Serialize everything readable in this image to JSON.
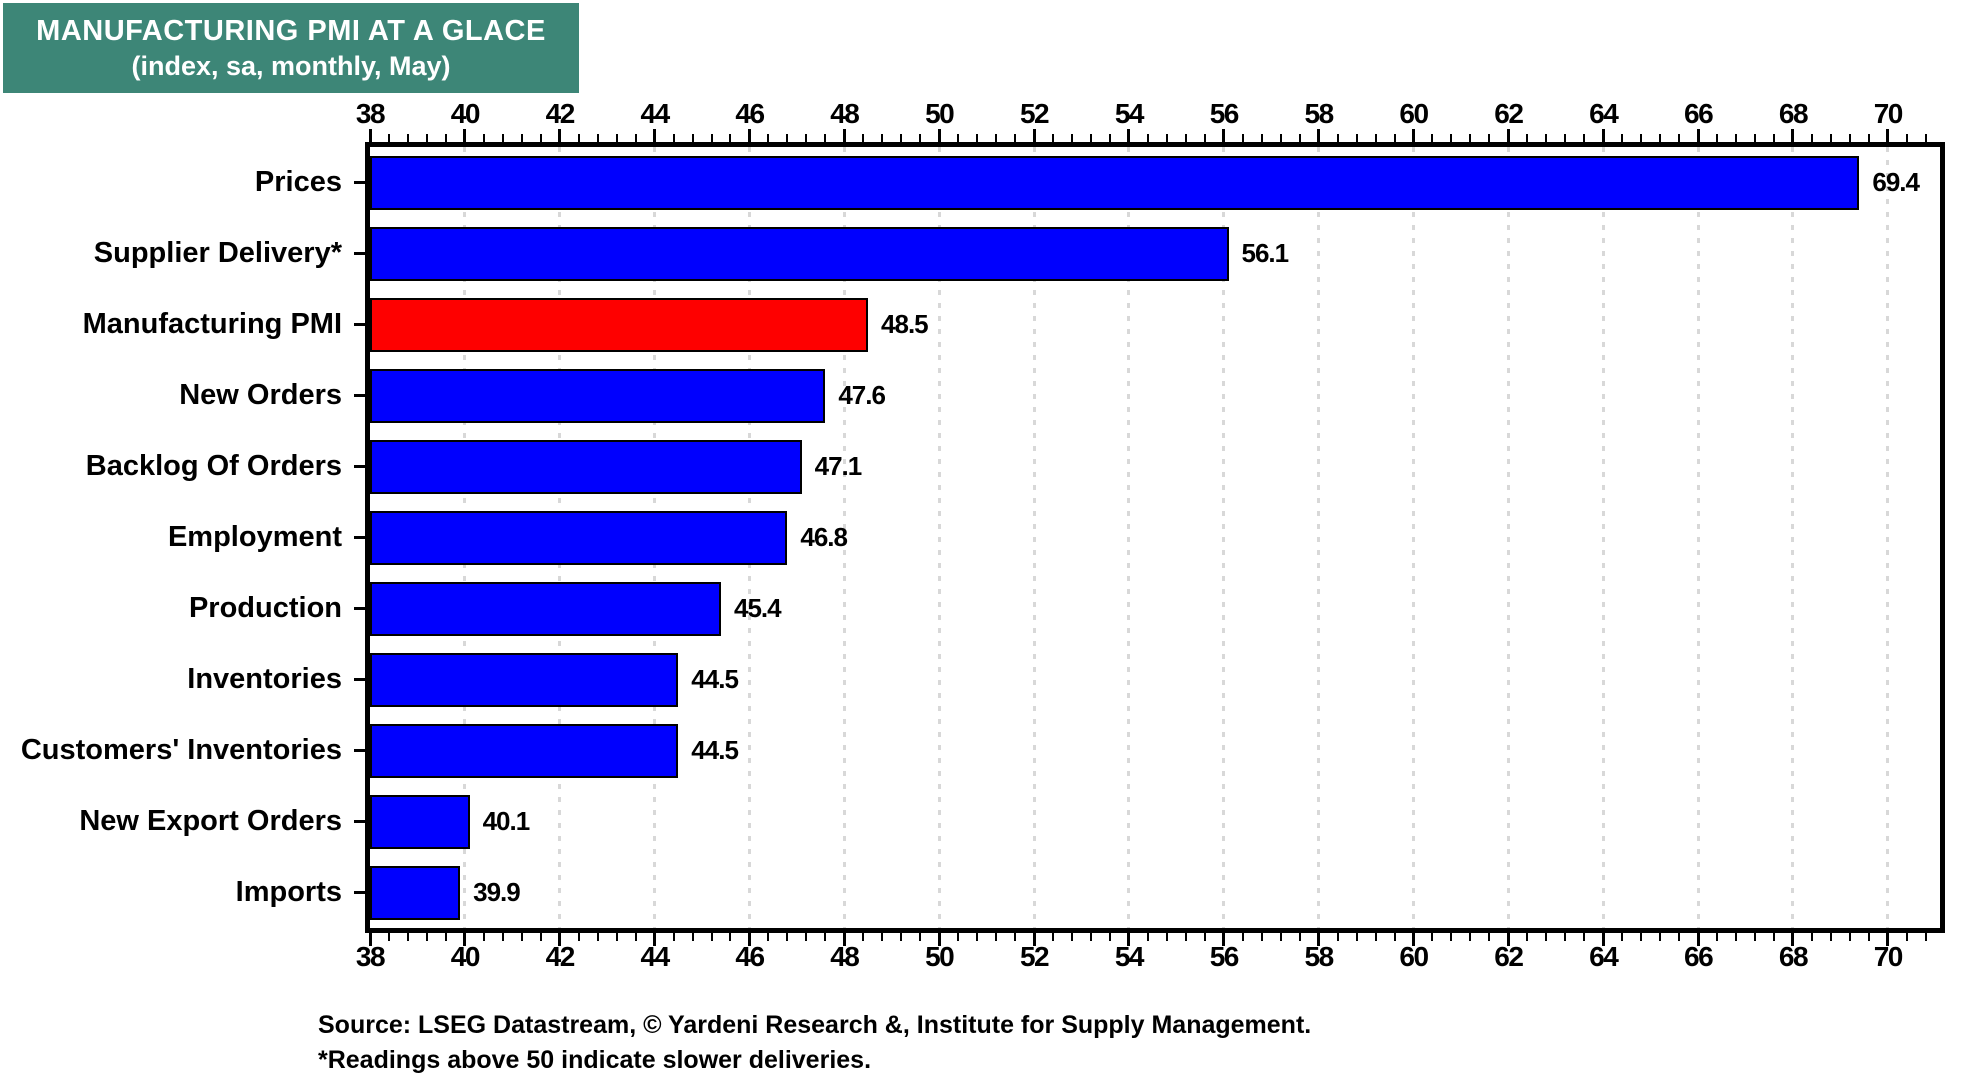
{
  "title_box": {
    "title": "MANUFACTURING PMI AT A GLACE",
    "subtitle": "(index, sa, monthly, May)",
    "bg_color": "#3D8677",
    "text_color": "#FFFFFF"
  },
  "chart_data": {
    "type": "bar",
    "orientation": "horizontal",
    "title": "MANUFACTURING PMI AT A GLACE",
    "subtitle": "(index, sa, monthly, May)",
    "categories": [
      "Prices",
      "Supplier Delivery*",
      "Manufacturing PMI",
      "New Orders",
      "Backlog Of Orders",
      "Employment",
      "Production",
      "Inventories",
      "Customers' Inventories",
      "New Export Orders",
      "Imports"
    ],
    "values": [
      69.4,
      56.1,
      48.5,
      47.6,
      47.1,
      46.8,
      45.4,
      44.5,
      44.5,
      40.1,
      39.9
    ],
    "value_labels": [
      "69.4",
      "56.1",
      "48.5",
      "47.6",
      "47.1",
      "46.8",
      "45.4",
      "44.5",
      "44.5",
      "40.1",
      "39.9"
    ],
    "highlight_index": 2,
    "bar_color": "#0000FE",
    "highlight_color": "#FE0000",
    "xlim": [
      38,
      71.1
    ],
    "x_ticks": [
      38,
      40,
      42,
      44,
      46,
      48,
      50,
      52,
      54,
      56,
      58,
      60,
      62,
      64,
      66,
      68,
      70
    ],
    "minor_tick_step": 0.4,
    "grid": "vertical-dotted-at-major-ticks",
    "gridline_color": "#D8D8D8",
    "axes": "ticks and labels on top and bottom, category labels on left",
    "legend": "none"
  },
  "source": {
    "line1": "Source: LSEG Datastream, © Yardeni Research &, Institute for Supply Management.",
    "line2": "*Readings above 50 indicate slower deliveries."
  }
}
